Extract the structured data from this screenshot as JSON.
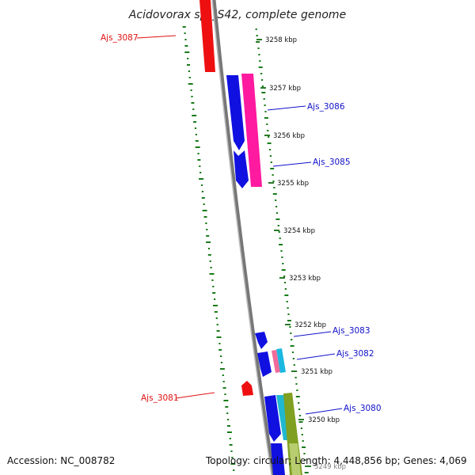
{
  "title": "Acidovorax sp. JS42, complete genome",
  "footer": {
    "accession": "Accession: NC_008782",
    "summary": "Topology: circular; Length: 4,448,856 bp; Genes: 4,069"
  },
  "ticks": [
    "3258 kbp",
    "3257 kbp",
    "3256 kbp",
    "3255 kbp",
    "3254 kbp",
    "3253 kbp",
    "3252 kbp",
    "3251 kbp",
    "3250 kbp",
    "3249 kbp"
  ],
  "genes": [
    {
      "name": "Ajs_3087",
      "color": "#e01010"
    },
    {
      "name": "Ajs_3086",
      "color": "#1010c8"
    },
    {
      "name": "Ajs_3085",
      "color": "#1010c8"
    },
    {
      "name": "Ajs_3083",
      "color": "#1010c8"
    },
    {
      "name": "Ajs_3082",
      "color": "#1010c8"
    },
    {
      "name": "Ajs_3081",
      "color": "#e01010"
    },
    {
      "name": "Ajs_3080",
      "color": "#1010c8"
    }
  ],
  "colors": {
    "backbone": "#808080",
    "gc_skew": "#1a7a1a",
    "forward_cds": "#0000ee",
    "reverse_cds": "#ee0000",
    "rna": "#ff1493",
    "cyan_feature": "#20c0d8",
    "olive_feature": "#7a9a20"
  }
}
